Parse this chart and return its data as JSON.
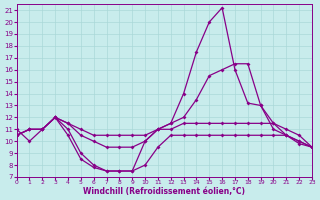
{
  "xlabel": "Windchill (Refroidissement éolien,°C)",
  "xlim": [
    0,
    23
  ],
  "ylim": [
    7,
    21.5
  ],
  "xticks": [
    0,
    1,
    2,
    3,
    4,
    5,
    6,
    7,
    8,
    9,
    10,
    11,
    12,
    13,
    14,
    15,
    16,
    17,
    18,
    19,
    20,
    21,
    22,
    23
  ],
  "yticks": [
    7,
    8,
    9,
    10,
    11,
    12,
    13,
    14,
    15,
    16,
    17,
    18,
    19,
    20,
    21
  ],
  "bg": "#c8ecec",
  "grid_color": "#aad8d8",
  "lc": "#880088",
  "lines": [
    [
      10.5,
      11.0,
      11.0,
      12.0,
      11.0,
      9.0,
      8.0,
      7.5,
      7.5,
      7.5,
      10.0,
      11.0,
      11.5,
      14.0,
      17.5,
      20.0,
      21.2,
      16.0,
      13.2,
      13.0,
      11.5,
      10.5,
      9.8,
      9.5
    ],
    [
      10.5,
      11.0,
      11.0,
      12.0,
      11.5,
      10.5,
      10.0,
      9.5,
      9.5,
      9.5,
      10.0,
      11.0,
      11.5,
      12.0,
      13.5,
      15.5,
      16.0,
      16.5,
      16.5,
      13.0,
      11.0,
      10.5,
      10.0,
      9.5
    ],
    [
      10.5,
      11.0,
      11.0,
      12.0,
      11.5,
      11.0,
      10.5,
      10.5,
      10.5,
      10.5,
      10.5,
      11.0,
      11.0,
      11.5,
      11.5,
      11.5,
      11.5,
      11.5,
      11.5,
      11.5,
      11.5,
      11.0,
      10.5,
      9.5
    ],
    [
      11.0,
      10.0,
      11.0,
      12.0,
      10.5,
      8.5,
      7.8,
      7.5,
      7.5,
      7.5,
      8.0,
      9.5,
      10.5,
      10.5,
      10.5,
      10.5,
      10.5,
      10.5,
      10.5,
      10.5,
      10.5,
      10.5,
      10.0,
      9.5
    ]
  ]
}
